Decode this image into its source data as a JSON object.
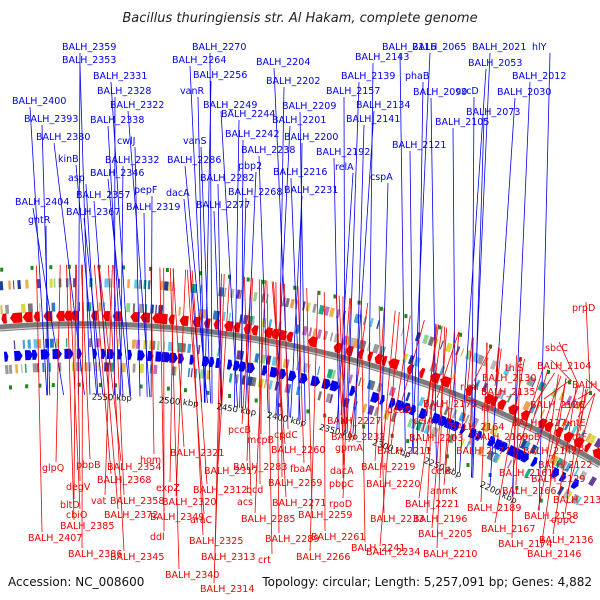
{
  "title": "Bacillus thuringiensis str. Al Hakam, complete genome",
  "footer": {
    "accession": "Accession: NC_008600",
    "summary": "Topology: circular; Length: 5,257,091 bp; Genes: 4,882"
  },
  "colors": {
    "forward": "#0000ee",
    "reverse": "#ee0000",
    "backbone": "#7a7a7a",
    "marker": "#1a8a1a"
  },
  "kbp_labels": [
    "2200 kbp",
    "2250 kbp",
    "2300 kbp",
    "2350 kbp",
    "2400 kbp",
    "2450 kbp",
    "2500 kbp",
    "2550 kbp"
  ],
  "forward_genes": [
    "BALH_2359",
    "BALH_2353",
    "BALH_2331",
    "BALH_2328",
    "BALH_2400",
    "BALH_2322",
    "BALH_2393",
    "BALH_2338",
    "BALH_2380",
    "cwlJ",
    "kinB",
    "BALH_2332",
    "asp",
    "BALH_2346",
    "pepF",
    "BALH_2357",
    "BALH_2404",
    "BALH_2319",
    "BALH_2367",
    "gntR",
    "BALH_2270",
    "BALH_2264",
    "BALH_2256",
    "vanR",
    "BALH_2249",
    "BALH_2244",
    "vanS",
    "BALH_2286",
    "BALH_2242",
    "BALH_2238",
    "pbp2",
    "BALH_2282",
    "dacA",
    "BALH_2268",
    "BALH_2277",
    "BALH_2204",
    "BALH_2202",
    "BALH_2209",
    "BALH_2201",
    "BALH_2200",
    "BALH_2216",
    "BALH_2231",
    "BALH_2143",
    "BALH_2116",
    "BALH_2139",
    "BALH_2157",
    "BALH_2134",
    "BALH_2141",
    "BALH_2192",
    "relA",
    "cspA",
    "BALH_2121",
    "BALH_2065",
    "phaB",
    "BALH_2099",
    "BALH_2021",
    "hlY",
    "BALH_2053",
    "BALH_2012",
    "czcD",
    "BALH_2030",
    "BALH_2073",
    "BALH_2105"
  ],
  "reverse_genes": [
    "prpD",
    "sbcC",
    "thiS",
    "BALH_2104",
    "BALH_2130",
    "rimI",
    "BALH_2135",
    "BALH_2106",
    "rimI",
    "BALH_2126",
    "entC",
    "BALH_2173",
    "BALH_2164",
    "BALH_2127",
    "entE",
    "deaD",
    "celA",
    "BALH_2169",
    "oppB",
    "entF",
    "BALH_2227",
    "BALH_2232",
    "BALH_2203",
    "BALH_2177",
    "BALH_2142",
    "imrB",
    "BALH_2122",
    "cpdC",
    "BALH_2211",
    "BALH_2129",
    "gpmA",
    "celB",
    "BALH_2161",
    "mcpB",
    "BALH_2260",
    "BALH_2219",
    "dacA",
    "anmK",
    "BALH_2166",
    "BALH_2283",
    "fbaA",
    "BALH_2220",
    "BALH_2189",
    "BALH_2131",
    "pbpC",
    "BALH_2158",
    "BALH_2269",
    "BALH_2221",
    "BALH_2196",
    "BALH_2167",
    "oppC",
    "BALH_2271",
    "rpoD",
    "BALH_2233",
    "BALH_2205",
    "BALH_2174",
    "BALH_2136",
    "BALH_2259",
    "BALH_2146",
    "BALH_2321",
    "pccB",
    "BALH_2261",
    "BALH_2234",
    "BALH_2210",
    "BALH_2317",
    "bcd",
    "glpQ",
    "pbpB",
    "BALH_2354",
    "hom",
    "BALH_2312",
    "BALH_2266",
    "BALH_2241",
    "degV",
    "BALH_2368",
    "expZ",
    "acs",
    "BALH_2285",
    "BALH_2289",
    "bltD",
    "BALH_2358",
    "BALH_2320",
    "cbiO",
    "vat",
    "BALH_2349",
    "araC",
    "BALH_2385",
    "BALH_2372",
    "ddl",
    "BALH_2325",
    "BALH_2407",
    "BALH_2345",
    "BALH_2313",
    "crt",
    "BALH_2386",
    "BALH_2340",
    "BALH_2314"
  ]
}
